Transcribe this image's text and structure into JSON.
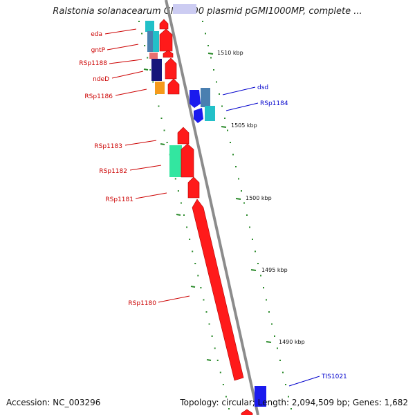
{
  "title": "Ralstonia solanacearum GMI1000 plasmid pGMI1000MP, complete ...",
  "footer": {
    "accession": "Accession: NC_003296",
    "topology": "Topology: circular; Length: 2,094,509 bp; Genes: 1,682"
  },
  "colors": {
    "backbone": "#8c8c8c",
    "tick": "#2a8a2a",
    "label_left": "#cc0000",
    "label_right": "#0000cc",
    "gene_red": "#ff1a1a",
    "gene_blue": "#1a1aee"
  },
  "scale_labels": [
    "1510 kbp",
    "1505 kbp",
    "1500 kbp",
    "1495 kbp",
    "1490 kbp"
  ],
  "genes_left": [
    {
      "label": "eda",
      "color": "#22c0c8"
    },
    {
      "label": "gntP",
      "color": "#4a7fb0"
    },
    {
      "label": "RSp1188",
      "color": "#e87070"
    },
    {
      "label": "ndeD",
      "color": "#16167a"
    },
    {
      "label": "RSp1186",
      "color": "#f59a1a"
    },
    {
      "label": "RSp1183",
      "color": "#ff1a1a"
    },
    {
      "label": "RSp1182",
      "color": "#33e6a0"
    },
    {
      "label": "RSp1181",
      "color": "#ff1a1a"
    },
    {
      "label": "RSp1180",
      "color": "#ff1a1a"
    }
  ],
  "genes_right": [
    {
      "label": "dsd",
      "color": "#1a1aee"
    },
    {
      "label": "RSp1184",
      "color": "#22c0c8"
    },
    {
      "label": "TIS1021",
      "color": "#1a1aee"
    }
  ]
}
